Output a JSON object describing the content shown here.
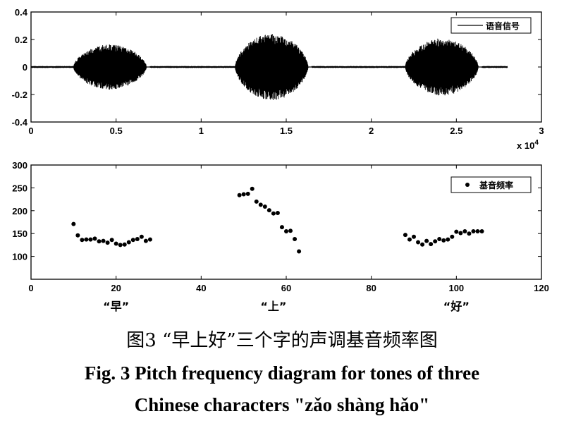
{
  "chart_data": [
    {
      "type": "line",
      "legend": [
        "语音信号"
      ],
      "legend_position": "top-right",
      "xlim": [
        0,
        3
      ],
      "ylim": [
        -0.4,
        0.4
      ],
      "x_ticks": [
        "0",
        "0.5",
        "1",
        "1.5",
        "2",
        "2.5",
        "3"
      ],
      "y_ticks": [
        "0.4",
        "0.2",
        "0",
        "-0.2",
        "-0.4"
      ],
      "x_multiplier": "x 10",
      "x_multiplier_exp": "4",
      "bursts": [
        {
          "start": 0.25,
          "end": 0.7,
          "peak": 0.15
        },
        {
          "start": 1.2,
          "end": 1.65,
          "peak": 0.22
        },
        {
          "start": 2.2,
          "end": 2.65,
          "peak": 0.19
        }
      ],
      "signal_end": 2.8,
      "grid": false
    },
    {
      "type": "scatter",
      "legend": [
        "基音频率"
      ],
      "legend_position": "top-right",
      "xlim": [
        0,
        120
      ],
      "ylim": [
        50,
        300
      ],
      "x_ticks": [
        "0",
        "20",
        "40",
        "60",
        "80",
        "100",
        "120"
      ],
      "y_ticks": [
        "300",
        "250",
        "200",
        "150",
        "100"
      ],
      "grid": false,
      "points": [
        [
          10,
          171
        ],
        [
          11,
          146
        ],
        [
          12,
          136
        ],
        [
          13,
          137
        ],
        [
          14,
          137
        ],
        [
          15,
          139
        ],
        [
          16,
          133
        ],
        [
          17,
          134
        ],
        [
          18,
          130
        ],
        [
          19,
          136
        ],
        [
          20,
          128
        ],
        [
          21,
          125
        ],
        [
          22,
          126
        ],
        [
          23,
          131
        ],
        [
          24,
          136
        ],
        [
          25,
          138
        ],
        [
          26,
          143
        ],
        [
          27,
          134
        ],
        [
          28,
          137
        ],
        [
          49,
          234
        ],
        [
          50,
          236
        ],
        [
          51,
          237
        ],
        [
          52,
          248
        ],
        [
          53,
          220
        ],
        [
          54,
          213
        ],
        [
          55,
          209
        ],
        [
          56,
          201
        ],
        [
          57,
          194
        ],
        [
          58,
          195
        ],
        [
          59,
          164
        ],
        [
          60,
          155
        ],
        [
          61,
          156
        ],
        [
          62,
          138
        ],
        [
          63,
          111
        ],
        [
          88,
          147
        ],
        [
          89,
          137
        ],
        [
          90,
          143
        ],
        [
          91,
          131
        ],
        [
          92,
          126
        ],
        [
          93,
          134
        ],
        [
          94,
          127
        ],
        [
          95,
          133
        ],
        [
          96,
          138
        ],
        [
          97,
          135
        ],
        [
          98,
          137
        ],
        [
          99,
          143
        ],
        [
          100,
          154
        ],
        [
          101,
          151
        ],
        [
          102,
          155
        ],
        [
          103,
          150
        ],
        [
          104,
          155
        ],
        [
          105,
          155
        ],
        [
          106,
          155
        ]
      ]
    }
  ],
  "char_labels": [
    {
      "text": "“早”",
      "x": 20
    },
    {
      "text": "“上”",
      "x": 57
    },
    {
      "text": "“好”",
      "x": 100
    }
  ],
  "caption": {
    "zh": "图3 “早上好”三个字的声调基音频率图",
    "en_line1": "Fig. 3  Pitch frequency diagram for tones of three",
    "en_line2": "Chinese characters \"zǎo shàng hǎo\""
  }
}
